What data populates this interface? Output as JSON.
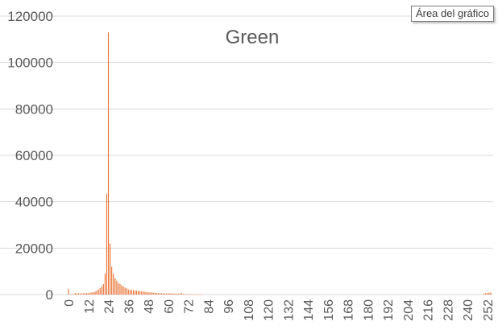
{
  "tooltip": "Área del gráfico",
  "colors": {
    "bar": "#E97132",
    "grid": "#D9D9D9",
    "text": "#595959"
  },
  "chart_data": {
    "type": "bar",
    "title": "Green",
    "xlabel": "",
    "ylabel": "",
    "ylim": [
      0,
      120000
    ],
    "yticks": [
      0,
      20000,
      40000,
      60000,
      80000,
      100000,
      120000
    ],
    "xlim": [
      0,
      255
    ],
    "xticks": [
      0,
      12,
      24,
      36,
      48,
      60,
      72,
      84,
      96,
      108,
      120,
      132,
      144,
      156,
      168,
      180,
      192,
      204,
      216,
      228,
      240,
      252
    ],
    "grid": true,
    "legend": "none",
    "x": [
      0,
      1,
      2,
      3,
      4,
      5,
      6,
      7,
      8,
      9,
      10,
      11,
      12,
      13,
      14,
      15,
      16,
      17,
      18,
      19,
      20,
      21,
      22,
      23,
      24,
      25,
      26,
      27,
      28,
      29,
      30,
      31,
      32,
      33,
      34,
      35,
      36,
      37,
      38,
      39,
      40,
      41,
      42,
      43,
      44,
      45,
      46,
      47,
      48,
      49,
      50,
      51,
      52,
      53,
      54,
      55,
      56,
      57,
      58,
      59,
      60,
      61,
      62,
      63,
      64,
      65,
      66,
      67,
      68,
      69,
      70,
      71,
      72,
      73,
      74,
      75,
      76,
      77,
      78,
      79,
      80,
      250,
      251,
      252,
      253,
      254
    ],
    "values": [
      2500,
      200,
      150,
      200,
      700,
      500,
      600,
      500,
      500,
      500,
      600,
      700,
      600,
      800,
      900,
      1000,
      1300,
      1700,
      2200,
      2800,
      3500,
      4500,
      9000,
      43500,
      113000,
      22000,
      12000,
      9000,
      7000,
      6000,
      5000,
      4500,
      4000,
      3500,
      3000,
      2700,
      2200,
      2000,
      2000,
      1900,
      1800,
      1700,
      1600,
      1500,
      1400,
      1300,
      1200,
      1100,
      1000,
      900,
      900,
      800,
      700,
      700,
      600,
      600,
      600,
      500,
      500,
      500,
      500,
      500,
      500,
      400,
      400,
      400,
      400,
      400,
      700,
      300,
      200,
      200,
      150,
      150,
      100,
      100,
      100,
      100,
      100,
      100,
      100,
      400,
      600,
      700,
      800,
      900
    ]
  }
}
